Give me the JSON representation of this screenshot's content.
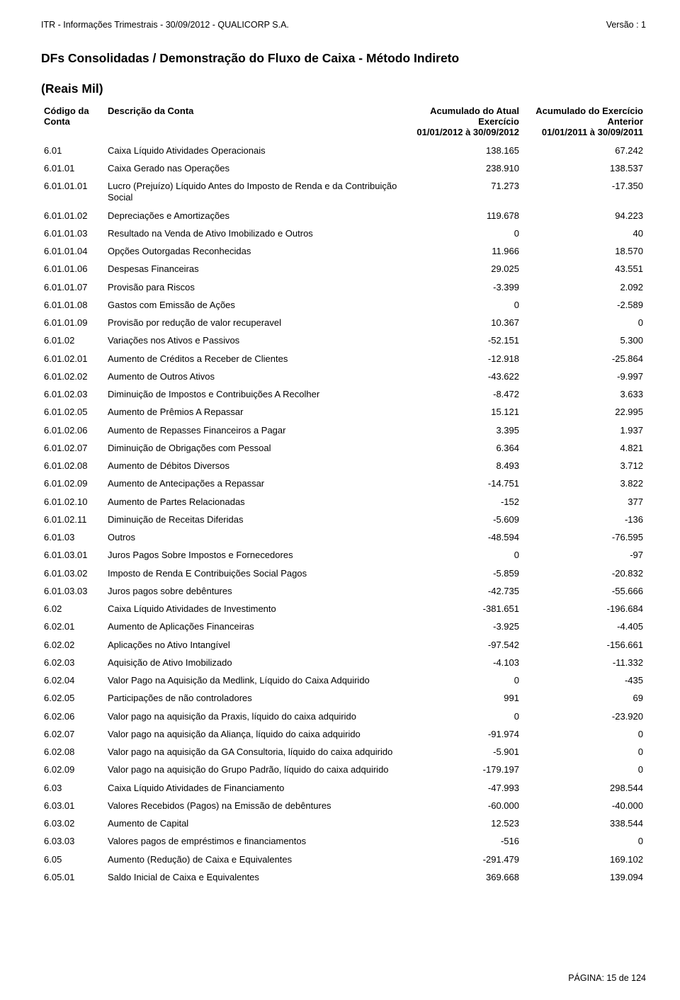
{
  "header": {
    "left": "ITR - Informações Trimestrais - 30/09/2012 - QUALICORP S.A.",
    "right": "Versão : 1"
  },
  "titles": {
    "section": "DFs Consolidadas / Demonstração do Fluxo de Caixa  - Método Indireto",
    "sub": "(Reais Mil)"
  },
  "columns": {
    "code": "Código da Conta",
    "desc": "Descrição da Conta",
    "v1_l1": "Acumulado do Atual",
    "v1_l2": "Exercício",
    "v1_l3": "01/01/2012 à 30/09/2012",
    "v2_l1": "Acumulado do Exercício",
    "v2_l2": "Anterior",
    "v2_l3": "01/01/2011 à 30/09/2011"
  },
  "rows": [
    {
      "c": "6.01",
      "d": "Caixa Líquido Atividades Operacionais",
      "v1": "138.165",
      "v2": "67.242"
    },
    {
      "c": "6.01.01",
      "d": "Caixa Gerado nas Operações",
      "v1": "238.910",
      "v2": "138.537"
    },
    {
      "c": "6.01.01.01",
      "d": "Lucro (Prejuízo) Líquido Antes do Imposto de Renda e da Contribuição Social",
      "v1": "71.273",
      "v2": "-17.350"
    },
    {
      "c": "6.01.01.02",
      "d": "Depreciações e  Amortizações",
      "v1": "119.678",
      "v2": "94.223"
    },
    {
      "c": "6.01.01.03",
      "d": "Resultado na Venda de Ativo Imobilizado e Outros",
      "v1": "0",
      "v2": "40"
    },
    {
      "c": "6.01.01.04",
      "d": "Opções Outorgadas Reconhecidas",
      "v1": "11.966",
      "v2": "18.570"
    },
    {
      "c": "6.01.01.06",
      "d": "Despesas Financeiras",
      "v1": "29.025",
      "v2": "43.551"
    },
    {
      "c": "6.01.01.07",
      "d": "Provisão para Riscos",
      "v1": "-3.399",
      "v2": "2.092"
    },
    {
      "c": "6.01.01.08",
      "d": "Gastos com Emissão de Ações",
      "v1": "0",
      "v2": "-2.589"
    },
    {
      "c": "6.01.01.09",
      "d": "Provisão por redução de valor recuperavel",
      "v1": "10.367",
      "v2": "0"
    },
    {
      "c": "6.01.02",
      "d": "Variações nos Ativos e Passivos",
      "v1": "-52.151",
      "v2": "5.300"
    },
    {
      "c": "6.01.02.01",
      "d": "Aumento de Créditos a Receber de Clientes",
      "v1": "-12.918",
      "v2": "-25.864"
    },
    {
      "c": "6.01.02.02",
      "d": "Aumento de Outros Ativos",
      "v1": "-43.622",
      "v2": "-9.997"
    },
    {
      "c": "6.01.02.03",
      "d": "Diminuição de Impostos e Contribuições A Recolher",
      "v1": "-8.472",
      "v2": "3.633"
    },
    {
      "c": "6.01.02.05",
      "d": "Aumento de Prêmios A Repassar",
      "v1": "15.121",
      "v2": "22.995"
    },
    {
      "c": "6.01.02.06",
      "d": "Aumento de Repasses Financeiros a Pagar",
      "v1": "3.395",
      "v2": "1.937"
    },
    {
      "c": "6.01.02.07",
      "d": "Diminuição de Obrigações com Pessoal",
      "v1": "6.364",
      "v2": "4.821"
    },
    {
      "c": "6.01.02.08",
      "d": "Aumento de Débitos Diversos",
      "v1": "8.493",
      "v2": "3.712"
    },
    {
      "c": "6.01.02.09",
      "d": "Aumento de Antecipações a Repassar",
      "v1": "-14.751",
      "v2": "3.822"
    },
    {
      "c": "6.01.02.10",
      "d": "Aumento de Partes Relacionadas",
      "v1": "-152",
      "v2": "377"
    },
    {
      "c": "6.01.02.11",
      "d": "Diminuição de Receitas Diferidas",
      "v1": "-5.609",
      "v2": "-136"
    },
    {
      "c": "6.01.03",
      "d": "Outros",
      "v1": "-48.594",
      "v2": "-76.595"
    },
    {
      "c": "6.01.03.01",
      "d": "Juros Pagos Sobre Impostos e Fornecedores",
      "v1": "0",
      "v2": "-97"
    },
    {
      "c": "6.01.03.02",
      "d": "Imposto de Renda E Contribuições Social Pagos",
      "v1": "-5.859",
      "v2": "-20.832"
    },
    {
      "c": "6.01.03.03",
      "d": "Juros pagos sobre debêntures",
      "v1": "-42.735",
      "v2": "-55.666"
    },
    {
      "c": "6.02",
      "d": "Caixa Líquido Atividades de Investimento",
      "v1": "-381.651",
      "v2": "-196.684"
    },
    {
      "c": "6.02.01",
      "d": "Aumento de Aplicações Financeiras",
      "v1": "-3.925",
      "v2": "-4.405"
    },
    {
      "c": "6.02.02",
      "d": "Aplicações no Ativo Intangível",
      "v1": "-97.542",
      "v2": "-156.661"
    },
    {
      "c": "6.02.03",
      "d": "Aquisição de Ativo Imobilizado",
      "v1": "-4.103",
      "v2": "-11.332"
    },
    {
      "c": "6.02.04",
      "d": "Valor  Pago na Aquisição da Medlink, Líquido do Caixa Adquirido",
      "v1": "0",
      "v2": "-435"
    },
    {
      "c": "6.02.05",
      "d": "Participações de não controladores",
      "v1": "991",
      "v2": "69"
    },
    {
      "c": "6.02.06",
      "d": "Valor  pago na aquisição da Praxis, líquido do caixa adquirido",
      "v1": "0",
      "v2": "-23.920"
    },
    {
      "c": "6.02.07",
      "d": "Valor  pago na aquisição da Aliança, líquido do caixa adquirido",
      "v1": "-91.974",
      "v2": "0"
    },
    {
      "c": "6.02.08",
      "d": "Valor  pago na aquisição da GA Consultoria, líquido do caixa adquirido",
      "v1": "-5.901",
      "v2": "0"
    },
    {
      "c": "6.02.09",
      "d": "Valor  pago na aquisição do Grupo Padrão, líquido do caixa adquirido",
      "v1": "-179.197",
      "v2": "0"
    },
    {
      "c": "6.03",
      "d": "Caixa Líquido Atividades de Financiamento",
      "v1": "-47.993",
      "v2": "298.544"
    },
    {
      "c": "6.03.01",
      "d": "Valores Recebidos (Pagos) na Emissão de debêntures",
      "v1": "-60.000",
      "v2": "-40.000"
    },
    {
      "c": "6.03.02",
      "d": "Aumento de Capital",
      "v1": "12.523",
      "v2": "338.544"
    },
    {
      "c": "6.03.03",
      "d": "Valores pagos de empréstimos e financiamentos",
      "v1": "-516",
      "v2": "0"
    },
    {
      "c": "6.05",
      "d": "Aumento (Redução) de Caixa e Equivalentes",
      "v1": "-291.479",
      "v2": "169.102"
    },
    {
      "c": "6.05.01",
      "d": "Saldo Inicial de Caixa e Equivalentes",
      "v1": "369.668",
      "v2": "139.094"
    }
  ],
  "footer": "PÁGINA: 15 de 124"
}
